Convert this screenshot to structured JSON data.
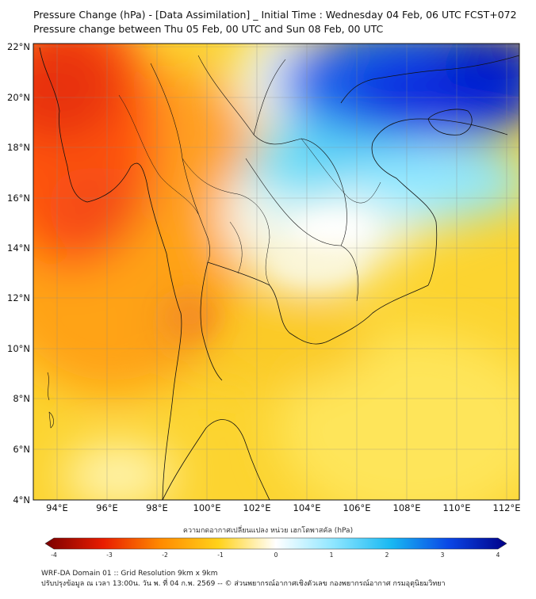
{
  "title": {
    "line1": "Pressure Change (hPa) - [Data Assimilation] _ Initial Time : Wednesday 04 Feb, 06 UTC FCST+072",
    "line2": "Pressure change between Thu 05 Feb, 00 UTC and Sun 08 Feb, 00 UTC"
  },
  "map": {
    "lat_labels": [
      "22°N",
      "20°N",
      "18°N",
      "16°N",
      "14°N",
      "12°N",
      "10°N",
      "8°N",
      "6°N",
      "4°N"
    ],
    "lon_labels": [
      "94°E",
      "96°E",
      "98°E",
      "100°E",
      "102°E",
      "104°E",
      "106°E",
      "108°E",
      "110°E",
      "112°E"
    ],
    "lat_range": [
      4,
      22
    ],
    "lon_range": [
      93,
      112.5
    ]
  },
  "colorbar": {
    "caption": "ความกดอากาศเปลี่ยนแปลง หน่วย เฮกโตพาสคัล (hPa)",
    "ticks": [
      "-4",
      "-3",
      "-2",
      "-1",
      "0",
      "1",
      "2",
      "3",
      "4"
    ],
    "colors": {
      "neg4": "#7a0000",
      "neg3": "#e81c00",
      "neg2": "#ff8a00",
      "neg1": "#ffd21a",
      "zero": "#ffffff",
      "pos1": "#8ee6ff",
      "pos2": "#18b8f2",
      "pos3": "#0a46e6",
      "pos4": "#000088"
    }
  },
  "footer": {
    "line1": "WRF-DA Domain 01 :: Grid Resolution 9km x 9km",
    "line2": "ปรับปรุงข้อมูล ณ เวลา 13:00น. วัน พ. ที่ 04 ก.พ. 2569 -- © ส่วนพยากรณ์อากาศเชิงตัวเลข กองพยากรณ์อากาศ กรมอุตุนิยมวิทยา"
  }
}
